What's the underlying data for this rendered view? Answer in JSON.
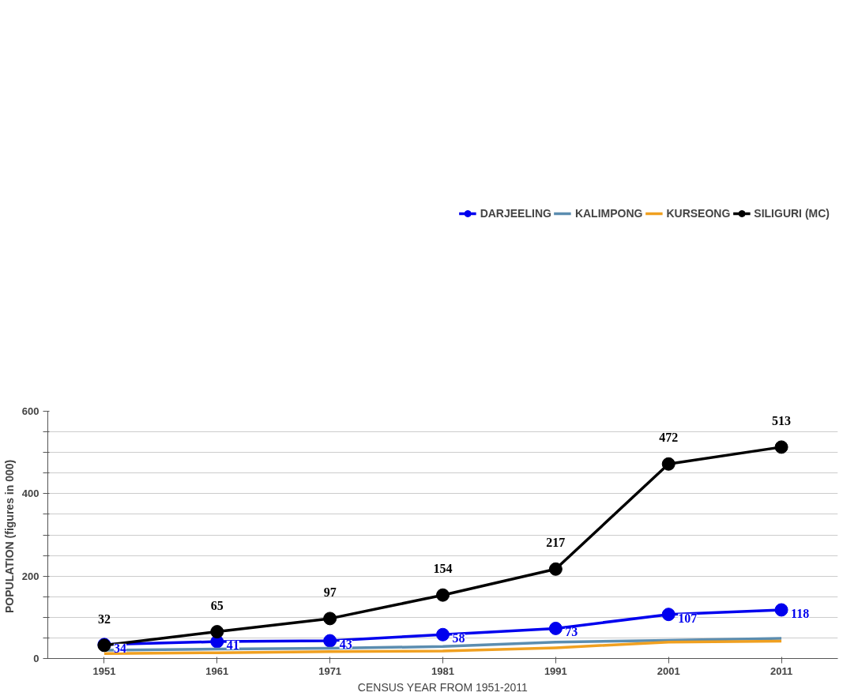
{
  "chart_data": {
    "type": "line",
    "xlabel": "CENSUS YEAR FROM 1951-2011",
    "ylabel": "POPULATION  (figures in 000)",
    "x": [
      1951,
      1961,
      1971,
      1981,
      1991,
      2001,
      2011
    ],
    "xlim": [
      1946,
      2016
    ],
    "xticks": [
      1951,
      1961,
      1971,
      1981,
      1991,
      2001,
      2011
    ],
    "ylim": [
      0,
      600
    ],
    "yticks": [
      0,
      {
        "value": 50,
        "label": null
      },
      {
        "value": 100,
        "label": null
      },
      {
        "value": 150,
        "label": null
      },
      200,
      {
        "value": 250,
        "label": null
      },
      {
        "value": 300,
        "label": null
      },
      {
        "value": 350,
        "label": null
      },
      400,
      {
        "value": 450,
        "label": null
      },
      {
        "value": 500,
        "label": null
      },
      {
        "value": 550,
        "label": null
      },
      600
    ],
    "grid": "y",
    "legend": "top",
    "series": [
      {
        "name": "DARJEELING",
        "color": "#0000ee",
        "marker": "circle",
        "values": [
          34,
          41,
          43,
          58,
          73,
          107,
          118
        ],
        "value_labels": [
          "34",
          "41",
          "43",
          "58",
          "73",
          "107",
          "118"
        ]
      },
      {
        "name": "KALIMPONG",
        "color": "#5b8db0",
        "marker": "none",
        "values": [
          20,
          23,
          25,
          29,
          40,
          44,
          49
        ]
      },
      {
        "name": "KURSEONG",
        "color": "#f0a020",
        "marker": "none",
        "values": [
          12,
          14,
          17,
          18,
          26,
          40,
          42
        ]
      },
      {
        "name": "SILIGURI (MC)",
        "color": "#000000",
        "marker": "circle",
        "values": [
          32,
          65,
          97,
          154,
          217,
          472,
          513
        ],
        "value_labels": [
          "32",
          "65",
          "97",
          "154",
          "217",
          "472",
          "513"
        ]
      }
    ]
  }
}
